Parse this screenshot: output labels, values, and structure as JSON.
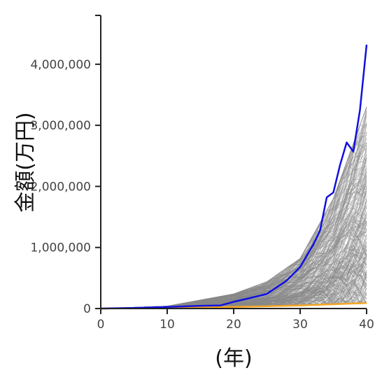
{
  "chart_data": {
    "type": "line",
    "title": "",
    "xlabel": "(年)",
    "ylabel": "金額(万円)",
    "xlim": [
      0,
      40
    ],
    "ylim": [
      0,
      4800000
    ],
    "xticks": [
      0,
      10,
      20,
      30,
      40
    ],
    "xtick_labels": [
      "0",
      "10",
      "20",
      "30",
      "40"
    ],
    "yticks": [
      0,
      1000000,
      2000000,
      3000000,
      4000000
    ],
    "ytick_labels": [
      "0",
      "1,000,000",
      "2,000,000",
      "3,000,000",
      "4,000,000"
    ],
    "grid": false,
    "colors": {
      "simulations": "#888888",
      "upper": "#1010e0",
      "lower": "#f5a623",
      "axis": "#222222"
    },
    "series": [
      {
        "role": "max-path",
        "x": [
          0,
          5,
          10,
          15,
          18,
          20,
          22,
          25,
          28,
          30,
          32,
          33,
          34,
          35,
          36,
          37,
          38,
          39,
          40
        ],
        "values": [
          0,
          10000,
          25000,
          45000,
          50000,
          110000,
          160000,
          240000,
          460000,
          680000,
          1050000,
          1280000,
          1820000,
          1900000,
          2350000,
          2720000,
          2570000,
          3250000,
          4320000
        ]
      },
      {
        "role": "min-path",
        "x": [
          0,
          10,
          20,
          30,
          40
        ],
        "values": [
          0,
          10000,
          25000,
          50000,
          90000
        ]
      },
      {
        "role": "simulation-envelope",
        "x": [
          0,
          10,
          20,
          25,
          30,
          35,
          40
        ],
        "median": [
          0,
          18000,
          70000,
          150000,
          320000,
          560000,
          900000
        ],
        "upper": [
          0,
          40000,
          240000,
          440000,
          820000,
          1800000,
          3300000
        ]
      }
    ]
  }
}
